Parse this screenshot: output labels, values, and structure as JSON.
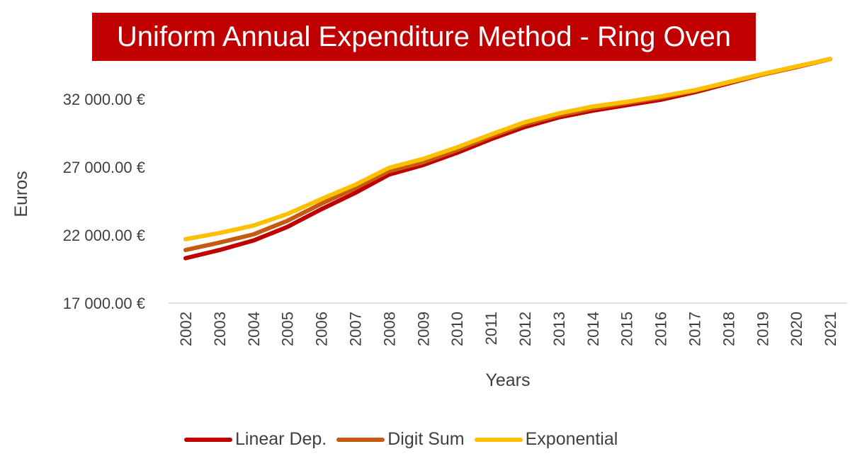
{
  "chart_data": {
    "type": "line",
    "title": "Uniform Annual Expenditure Method - Ring Oven",
    "xlabel": "Years",
    "ylabel": "Euros",
    "x": [
      "2002",
      "2003",
      "2004",
      "2005",
      "2006",
      "2007",
      "2008",
      "2009",
      "2010",
      "2011",
      "2012",
      "2013",
      "2014",
      "2015",
      "2016",
      "2017",
      "2018",
      "2019",
      "2020",
      "2021"
    ],
    "ylim": [
      17000,
      34600
    ],
    "yticks": [
      17000,
      22000,
      27000,
      32000
    ],
    "ytick_labels": [
      "17 000.00 €",
      "22 000.00 €",
      "27 000.00 €",
      "32 000.00 €"
    ],
    "grid": false,
    "legend_position": "bottom",
    "series": [
      {
        "name": "Linear Dep.",
        "color": "#c00000",
        "values": [
          20300,
          20900,
          21600,
          22600,
          23900,
          25100,
          26450,
          27150,
          28050,
          29050,
          29950,
          30650,
          31150,
          31550,
          31950,
          32500,
          33150,
          33800,
          34350,
          34950
        ]
      },
      {
        "name": "Digit Sum",
        "color": "#c55a11",
        "values": [
          20900,
          21450,
          22050,
          23050,
          24300,
          25450,
          26700,
          27350,
          28250,
          29250,
          30150,
          30800,
          31300,
          31700,
          32100,
          32600,
          33200,
          33800,
          34350,
          34950
        ]
      },
      {
        "name": "Exponential",
        "color": "#ffc000",
        "values": [
          21700,
          22150,
          22700,
          23550,
          24650,
          25700,
          26950,
          27600,
          28450,
          29400,
          30300,
          30950,
          31450,
          31800,
          32200,
          32650,
          33250,
          33850,
          34400,
          34950
        ]
      }
    ]
  }
}
